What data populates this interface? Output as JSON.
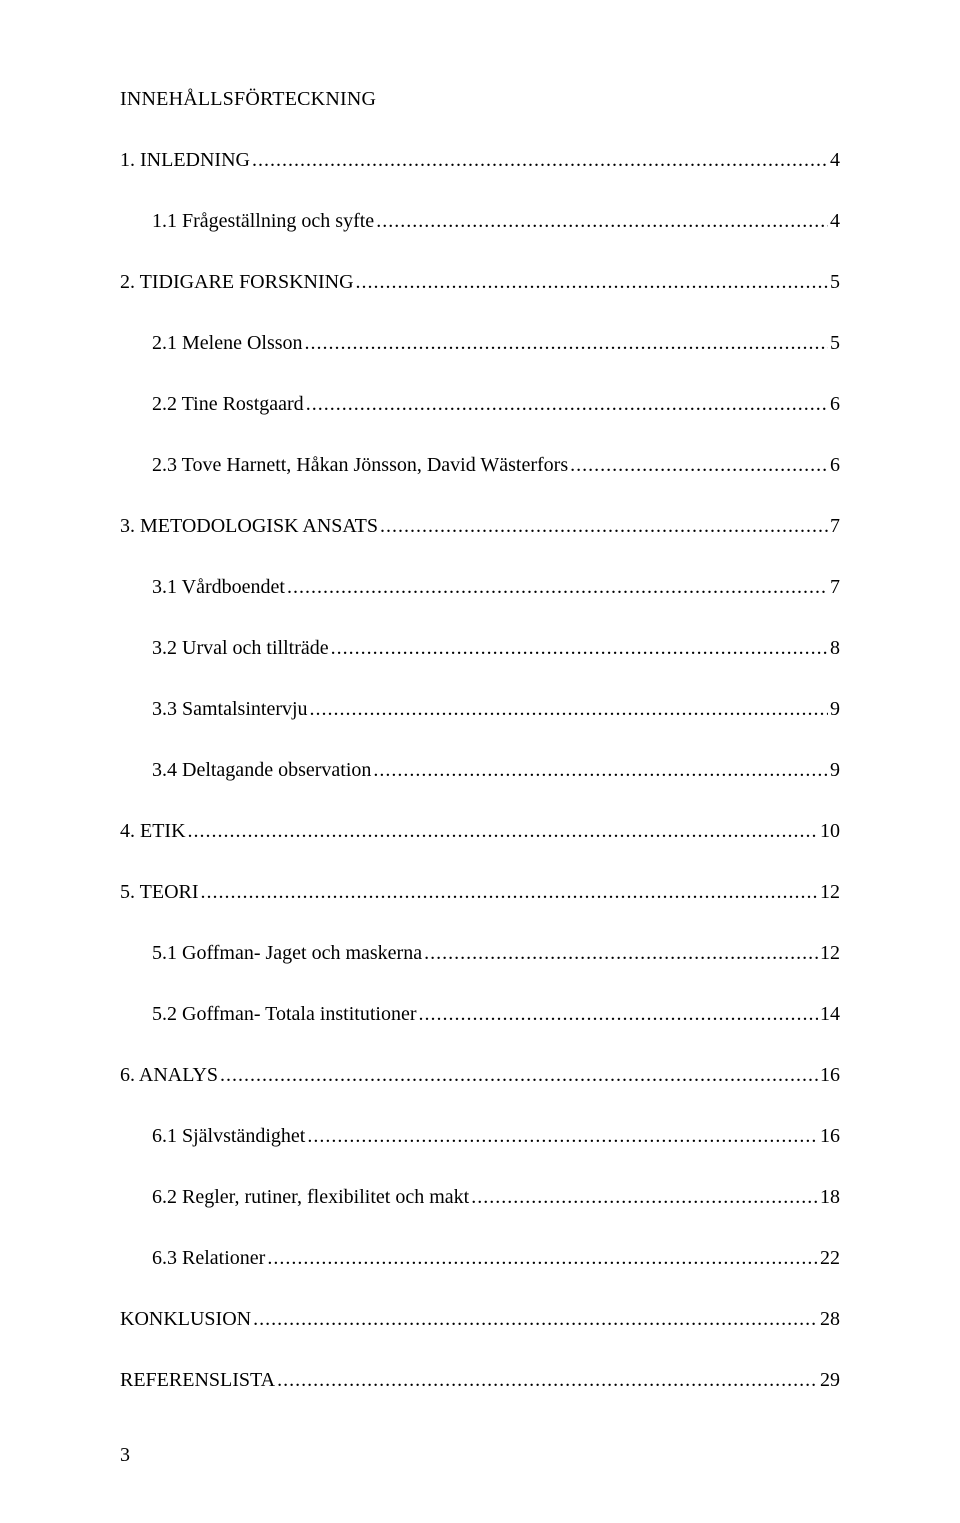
{
  "title": "INNEHÅLLSFÖRTECKNING",
  "entries": [
    {
      "label": "1. INLEDNING",
      "page": "4",
      "indent": false
    },
    {
      "label": "1.1 Frågeställning och syfte",
      "page": "4",
      "indent": true
    },
    {
      "label": "2. TIDIGARE FORSKNING",
      "page": "5",
      "indent": false
    },
    {
      "label": "2.1 Melene Olsson",
      "page": "5",
      "indent": true
    },
    {
      "label": "2.2 Tine Rostgaard",
      "page": "6",
      "indent": true
    },
    {
      "label": "2.3 Tove Harnett, Håkan Jönsson, David Wästerfors",
      "page": "6",
      "indent": true
    },
    {
      "label": "3. METODOLOGISK ANSATS",
      "page": "7",
      "indent": false
    },
    {
      "label": "3.1 Vårdboendet",
      "page": "7",
      "indent": true
    },
    {
      "label": "3.2 Urval och tillträde",
      "page": "8",
      "indent": true
    },
    {
      "label": "3.3 Samtalsintervju",
      "page": "9",
      "indent": true
    },
    {
      "label": "3.4 Deltagande observation",
      "page": "9",
      "indent": true
    },
    {
      "label": "4. ETIK",
      "page": "10",
      "indent": false
    },
    {
      "label": "5. TEORI",
      "page": "12",
      "indent": false
    },
    {
      "label": "5.1 Goffman- Jaget och maskerna",
      "page": "12",
      "indent": true
    },
    {
      "label": "5.2 Goffman- Totala institutioner",
      "page": "14",
      "indent": true
    },
    {
      "label": "6. ANALYS",
      "page": "16",
      "indent": false
    },
    {
      "label": "6.1 Självständighet",
      "page": "16",
      "indent": true
    },
    {
      "label": "6.2 Regler, rutiner, flexibilitet och makt",
      "page": "18",
      "indent": true
    },
    {
      "label": "6.3 Relationer",
      "page": "22",
      "indent": true
    },
    {
      "label": "KONKLUSION",
      "page": "28",
      "indent": false
    },
    {
      "label": "REFERENSLISTA",
      "page": "29",
      "indent": false
    }
  ],
  "page_number": "3",
  "colors": {
    "background": "#ffffff",
    "text": "#000000"
  }
}
